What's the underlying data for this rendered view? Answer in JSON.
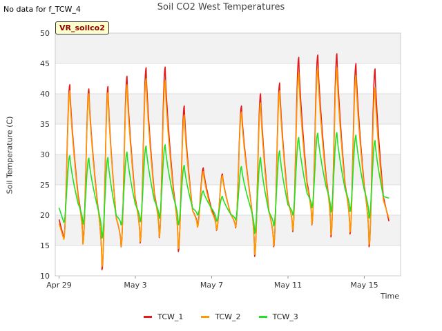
{
  "header": {
    "nodata_text": "No data for f_TCW_4",
    "badge_text": "VR_soilco2"
  },
  "chart_data": {
    "type": "line",
    "title": "Soil CO2 West Temperatures",
    "xlabel": "Time",
    "ylabel": "Soil Temperature (C)",
    "ylim": [
      10,
      50
    ],
    "yticks": [
      10,
      15,
      20,
      25,
      30,
      35,
      40,
      45,
      50
    ],
    "xlim_days": [
      -0.2,
      17.9
    ],
    "xticks": [
      {
        "day": 0,
        "label": "Apr 29"
      },
      {
        "day": 4,
        "label": "May 3"
      },
      {
        "day": 8,
        "label": "May 7"
      },
      {
        "day": 12,
        "label": "May 11"
      },
      {
        "day": 16,
        "label": "May 15"
      }
    ],
    "grid": true,
    "legend_position": "bottom",
    "series": [
      {
        "name": "TCW_1",
        "color": "#e31a1c",
        "start": 19.3,
        "days": [
          {
            "min": 16.2,
            "max": 41.5
          },
          {
            "min": 15.3,
            "max": 40.8
          },
          {
            "min": 11.0,
            "max": 41.2
          },
          {
            "min": 14.8,
            "max": 42.9
          },
          {
            "min": 15.4,
            "max": 44.3
          },
          {
            "min": 16.3,
            "max": 44.4
          },
          {
            "min": 14.0,
            "max": 38.0
          },
          {
            "min": 18.3,
            "max": 27.8
          },
          {
            "min": 17.5,
            "max": 26.8
          },
          {
            "min": 17.9,
            "max": 38.0
          },
          {
            "min": 13.2,
            "max": 40.0
          },
          {
            "min": 14.8,
            "max": 41.8
          },
          {
            "min": 17.3,
            "max": 46.0
          },
          {
            "min": 18.4,
            "max": 46.4
          },
          {
            "min": 16.4,
            "max": 46.6
          },
          {
            "min": 16.9,
            "max": 45.0
          },
          {
            "min": 14.8,
            "max": 44.1
          }
        ],
        "end": 19.0
      },
      {
        "name": "TCW_2",
        "color": "#ff9900",
        "start": 18.6,
        "days": [
          {
            "min": 16.0,
            "max": 40.5
          },
          {
            "min": 15.2,
            "max": 40.0
          },
          {
            "min": 11.5,
            "max": 40.2
          },
          {
            "min": 14.9,
            "max": 41.5
          },
          {
            "min": 15.6,
            "max": 42.5
          },
          {
            "min": 16.4,
            "max": 42.2
          },
          {
            "min": 14.5,
            "max": 36.5
          },
          {
            "min": 18.0,
            "max": 27.2
          },
          {
            "min": 17.6,
            "max": 26.5
          },
          {
            "min": 18.0,
            "max": 37.0
          },
          {
            "min": 13.5,
            "max": 38.5
          },
          {
            "min": 15.0,
            "max": 40.5
          },
          {
            "min": 17.5,
            "max": 43.5
          },
          {
            "min": 18.5,
            "max": 44.2
          },
          {
            "min": 16.8,
            "max": 44.3
          },
          {
            "min": 17.2,
            "max": 43.0
          },
          {
            "min": 15.2,
            "max": 41.0
          }
        ],
        "end": 19.5
      },
      {
        "name": "TCW_3",
        "color": "#22e022",
        "start": 21.2,
        "days": [
          {
            "min": 18.8,
            "max": 29.8
          },
          {
            "min": 18.5,
            "max": 29.4
          },
          {
            "min": 16.2,
            "max": 29.5
          },
          {
            "min": 18.4,
            "max": 30.4
          },
          {
            "min": 18.9,
            "max": 31.4
          },
          {
            "min": 19.5,
            "max": 31.6
          },
          {
            "min": 18.4,
            "max": 28.2
          },
          {
            "min": 20.0,
            "max": 24.0
          },
          {
            "min": 19.0,
            "max": 23.1
          },
          {
            "min": 19.2,
            "max": 28.0
          },
          {
            "min": 17.0,
            "max": 29.5
          },
          {
            "min": 18.2,
            "max": 30.6
          },
          {
            "min": 20.0,
            "max": 32.8
          },
          {
            "min": 21.2,
            "max": 33.5
          },
          {
            "min": 20.5,
            "max": 33.6
          },
          {
            "min": 20.6,
            "max": 33.2
          },
          {
            "min": 19.5,
            "max": 32.3
          }
        ],
        "end": 22.8
      }
    ]
  }
}
